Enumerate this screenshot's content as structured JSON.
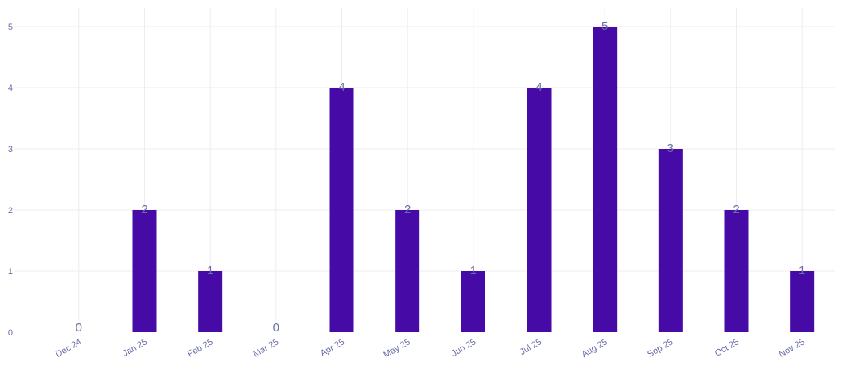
{
  "chart_data": {
    "type": "bar",
    "categories": [
      "Dec 24",
      "Jan 25",
      "Feb 25",
      "Mar 25",
      "Apr 25",
      "May 25",
      "Jun 25",
      "Jul 25",
      "Aug 25",
      "Sep 25",
      "Oct 25",
      "Nov 25"
    ],
    "values": [
      0,
      2,
      1,
      0,
      4,
      2,
      1,
      4,
      5,
      3,
      2,
      1
    ],
    "title": "",
    "xlabel": "",
    "ylabel": "",
    "ylim": [
      0,
      5
    ],
    "yticks": [
      "0",
      "1",
      "2",
      "3",
      "4",
      "5"
    ],
    "grid": true,
    "bar_color": "#460aa7",
    "label_color": "#6a6fa8"
  }
}
